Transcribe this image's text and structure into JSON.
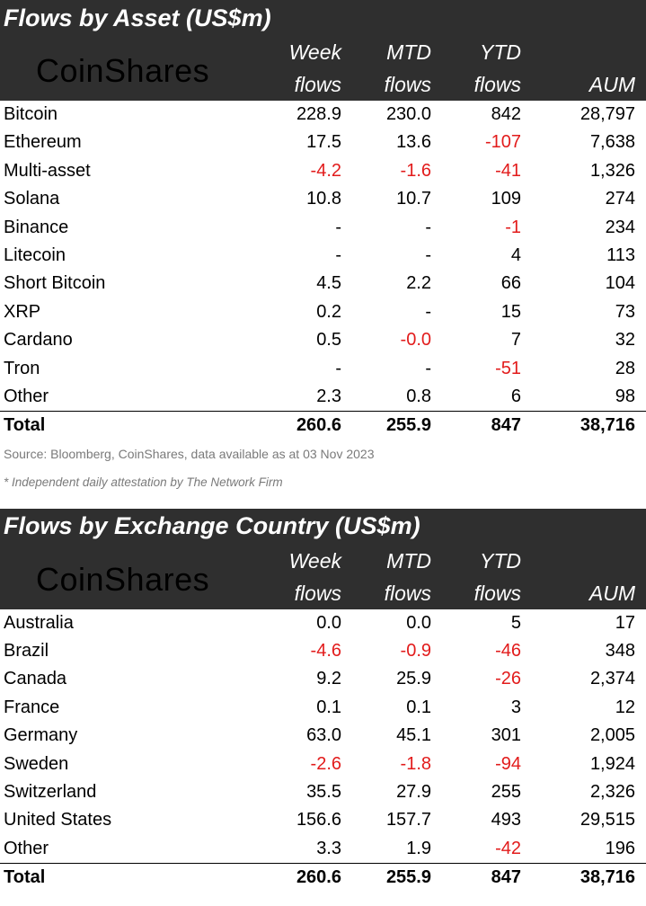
{
  "asset": {
    "title": "Flows by Asset (US$m)",
    "logo": "CoinShares",
    "headers": [
      [
        "Week",
        "flows"
      ],
      [
        "MTD",
        "flows"
      ],
      [
        "YTD",
        "flows"
      ],
      [
        "",
        "AUM"
      ]
    ],
    "rows": [
      {
        "name": "Bitcoin",
        "v": [
          "228.9",
          "230.0",
          "842",
          "28,797"
        ]
      },
      {
        "name": "Ethereum",
        "v": [
          "17.5",
          "13.6",
          "-107",
          "7,638"
        ]
      },
      {
        "name": "Multi-asset",
        "v": [
          "-4.2",
          "-1.6",
          "-41",
          "1,326"
        ]
      },
      {
        "name": "Solana",
        "v": [
          "10.8",
          "10.7",
          "109",
          "274"
        ]
      },
      {
        "name": "Binance",
        "v": [
          "-",
          "-",
          "-1",
          "234"
        ]
      },
      {
        "name": "Litecoin",
        "v": [
          "-",
          "-",
          "4",
          "113"
        ]
      },
      {
        "name": "Short Bitcoin",
        "v": [
          "4.5",
          "2.2",
          "66",
          "104"
        ]
      },
      {
        "name": "XRP",
        "v": [
          "0.2",
          "-",
          "15",
          "73"
        ]
      },
      {
        "name": "Cardano",
        "v": [
          "0.5",
          "-0.0",
          "7",
          "32"
        ]
      },
      {
        "name": "Tron",
        "v": [
          "-",
          "-",
          "-51",
          "28"
        ]
      },
      {
        "name": "Other",
        "v": [
          "2.3",
          "0.8",
          "6",
          "98"
        ]
      }
    ],
    "total": {
      "name": "Total",
      "v": [
        "260.6",
        "255.9",
        "847",
        "38,716"
      ]
    },
    "source": "Source: Bloomberg, CoinShares, data available as at 03 Nov 2023",
    "footnote": "* Independent daily attestation by The Network Firm"
  },
  "country": {
    "title": "Flows by Exchange Country (US$m)",
    "logo": "CoinShares",
    "headers": [
      [
        "Week",
        "flows"
      ],
      [
        "MTD",
        "flows"
      ],
      [
        "YTD",
        "flows"
      ],
      [
        "",
        "AUM"
      ]
    ],
    "rows": [
      {
        "name": "Australia",
        "v": [
          "0.0",
          "0.0",
          "5",
          "17"
        ]
      },
      {
        "name": "Brazil",
        "v": [
          "-4.6",
          "-0.9",
          "-46",
          "348"
        ]
      },
      {
        "name": "Canada",
        "v": [
          "9.2",
          "25.9",
          "-26",
          "2,374"
        ]
      },
      {
        "name": "France",
        "v": [
          "0.1",
          "0.1",
          "3",
          "12"
        ]
      },
      {
        "name": "Germany",
        "v": [
          "63.0",
          "45.1",
          "301",
          "2,005"
        ]
      },
      {
        "name": "Sweden",
        "v": [
          "-2.6",
          "-1.8",
          "-94",
          "1,924"
        ]
      },
      {
        "name": "Switzerland",
        "v": [
          "35.5",
          "27.9",
          "255",
          "2,326"
        ]
      },
      {
        "name": "United States",
        "v": [
          "156.6",
          "157.7",
          "493",
          "29,515"
        ]
      },
      {
        "name": "Other",
        "v": [
          "3.3",
          "1.9",
          "-42",
          "196"
        ]
      }
    ],
    "total": {
      "name": "Total",
      "v": [
        "260.6",
        "255.9",
        "847",
        "38,716"
      ]
    }
  }
}
